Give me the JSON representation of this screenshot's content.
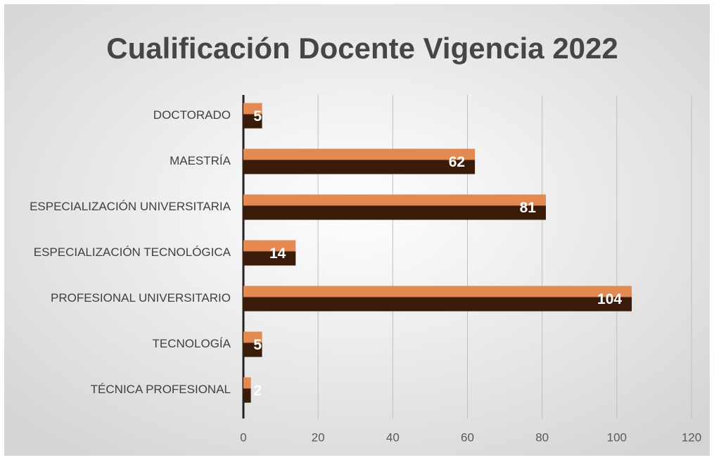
{
  "chart_data": {
    "type": "bar",
    "orientation": "horizontal",
    "title": "Cualificación Docente Vigencia 2022",
    "categories": [
      "DOCTORADO",
      "MAESTRÍA",
      "ESPECIALIZACIÓN UNIVERSITARIA",
      "ESPECIALIZACIÓN TECNOLÓGICA",
      "PROFESIONAL UNIVERSITARIO",
      "TECNOLOGÍA",
      "TÉCNICA PROFESIONAL"
    ],
    "values": [
      5,
      62,
      81,
      14,
      104,
      5,
      2
    ],
    "color": "#3a1a08",
    "top_color": "#e38a52",
    "xlim": [
      0,
      120
    ],
    "xticks": [
      0,
      20,
      40,
      60,
      80,
      100,
      120
    ],
    "grid": true
  }
}
